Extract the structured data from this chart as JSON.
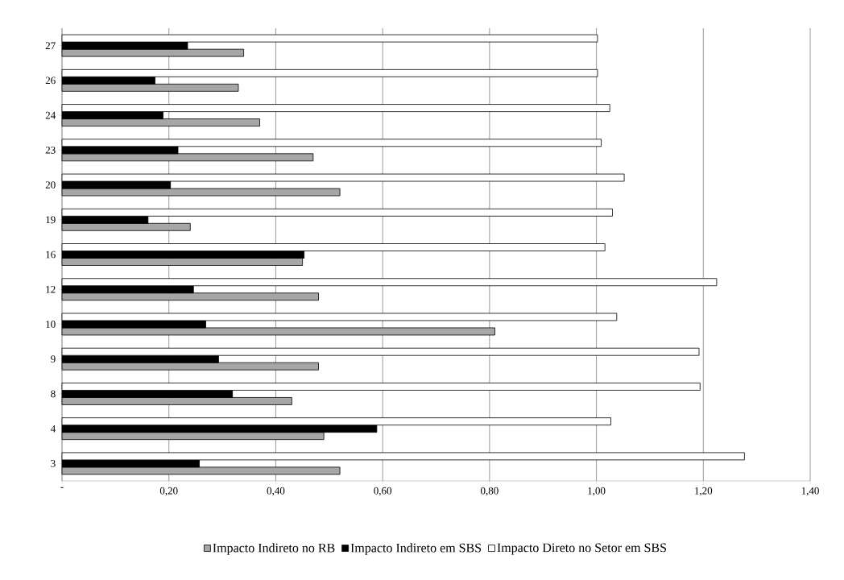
{
  "chart_data": {
    "type": "bar",
    "orientation": "horizontal",
    "categories": [
      "27",
      "26",
      "24",
      "23",
      "20",
      "19",
      "16",
      "12",
      "10",
      "9",
      "8",
      "4",
      "3"
    ],
    "series": [
      {
        "name": "Impacto Indireto no RB",
        "color": "#a6a6a6",
        "values": [
          0.34,
          0.33,
          0.37,
          0.47,
          0.52,
          0.24,
          0.45,
          0.48,
          0.81,
          0.48,
          0.43,
          0.49,
          0.52
        ]
      },
      {
        "name": "Impacto Indireto em SBS",
        "color": "#000000",
        "values": [
          0.235,
          0.174,
          0.189,
          0.217,
          0.203,
          0.161,
          0.453,
          0.246,
          0.269,
          0.293,
          0.319,
          0.589,
          0.257
        ]
      },
      {
        "name": "Impacto Direto no Setor em SBS",
        "color": "#ffffff",
        "values": [
          1.002,
          1.002,
          1.025,
          1.009,
          1.052,
          1.03,
          1.016,
          1.225,
          1.038,
          1.192,
          1.194,
          1.027,
          1.277
        ]
      }
    ],
    "xlim": [
      0,
      1.4
    ],
    "xticks": [
      {
        "value": 0,
        "label": "-"
      },
      {
        "value": 0.2,
        "label": "0,20"
      },
      {
        "value": 0.4,
        "label": "0,40"
      },
      {
        "value": 0.6,
        "label": "0,60"
      },
      {
        "value": 0.8,
        "label": "0,80"
      },
      {
        "value": 1.0,
        "label": "1,00"
      },
      {
        "value": 1.2,
        "label": "1,20"
      },
      {
        "value": 1.4,
        "label": "1,40"
      }
    ],
    "grid": "x",
    "legend": "bottom"
  }
}
